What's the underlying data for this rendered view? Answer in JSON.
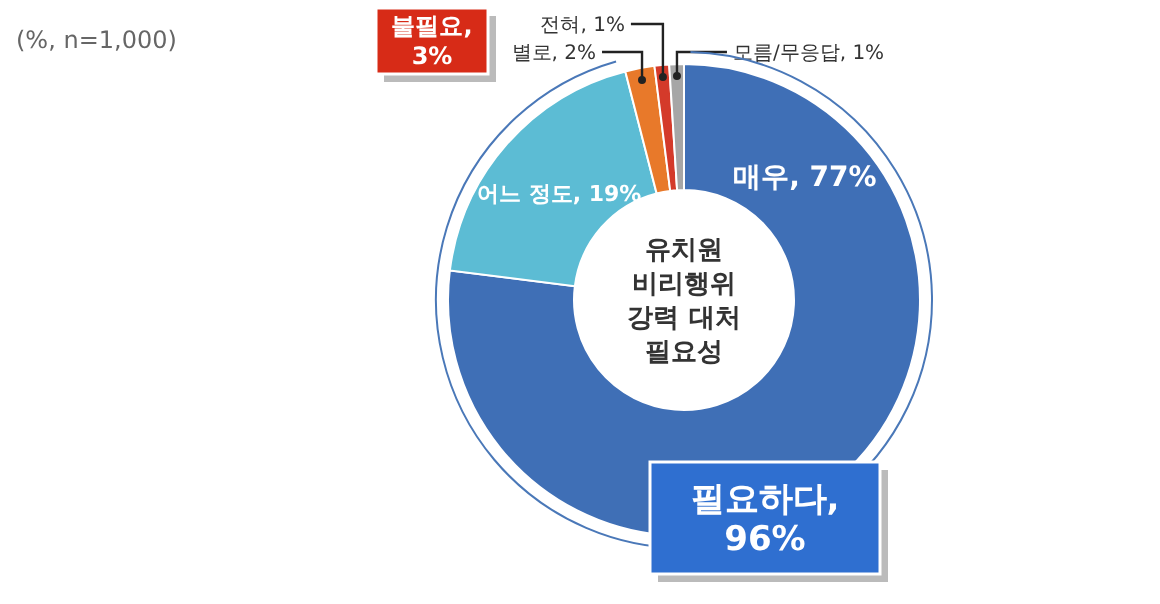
{
  "chart_data": {
    "type": "donut",
    "title": "유치원\n비리행위\n강력 대처\n필요성",
    "categories": [
      "매우",
      "어느 정도",
      "별로",
      "전혀",
      "모름/무응답"
    ],
    "values": [
      77,
      19,
      2,
      1,
      1
    ],
    "value_labels": [
      "77%",
      "19%",
      "2%",
      "1%",
      "1%"
    ],
    "colors": [
      "#3f6fb6",
      "#5cbcd4",
      "#e8792a",
      "#d43a2a",
      "#a6a6a6"
    ],
    "annotations": [
      "(%, n=1,000)",
      "필요하다,\n96%",
      "불필요,\n3%"
    ],
    "legend": false
  }
}
